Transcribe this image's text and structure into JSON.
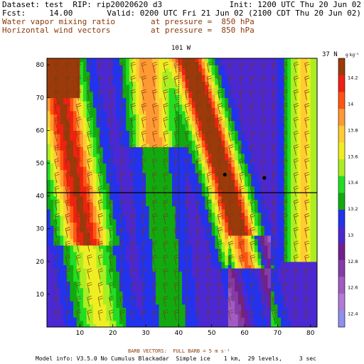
{
  "header": {
    "dataset_line": "Dataset: test  RIP: rip20020620 d3",
    "init_line": "Init: 1200 UTC Thu 20 Jun 02",
    "fcst_line": "Fcst:     14.00",
    "valid_line": "Valid: 0200 UTC Fri 21 Jun 02 (2100 CDT Thu 20 Jun 02)",
    "field1_name": "Water vapor mixing ratio",
    "field1_level": "at pressure =  850 hPa",
    "field2_name": "Horizontal wind vectors",
    "field2_level": "at pressure =  850 hPa"
  },
  "plot": {
    "lon_marker": "101 W",
    "lat_marker": "37 N"
  },
  "footer": {
    "barb_note": "BARB VECTORS:  FULL BARB = 5 m s⁻¹",
    "model_info": "Model info: V3.5.0 No Cumulus Blackadar  Simple ice    1 km,  29 levels,     3 sec"
  },
  "colors": {
    "levels_low_to_high": [
      "#8f8fee",
      "#b17ad8",
      "#a05cc0",
      "#863ca8",
      "#72208e",
      "#4b28d2",
      "#2233ee",
      "#11aa11",
      "#22dd22",
      "#aaee22",
      "#eeee22",
      "#ffcc33",
      "#ff9933",
      "#ff5511",
      "#ee2211",
      "#9b3a0a"
    ]
  },
  "chart_data": {
    "type": "heatmap",
    "title": "",
    "xlabel": "",
    "ylabel": "",
    "xlim": [
      0,
      82
    ],
    "ylim": [
      0,
      82
    ],
    "x_ticks": [
      10,
      20,
      30,
      40,
      50,
      60,
      70,
      80
    ],
    "y_ticks": [
      10,
      20,
      30,
      40,
      50,
      60,
      70,
      80
    ],
    "reference_lines": {
      "vertical_x": 40,
      "horizontal_y": 41
    },
    "colorbar": {
      "units": "g kg⁻¹",
      "ticks": [
        12.4,
        12.6,
        12.8,
        13,
        13.2,
        13.4,
        13.6,
        13.8,
        14,
        14.2
      ]
    },
    "markers": [
      {
        "x": 54,
        "y": 46.5
      },
      {
        "x": 66,
        "y": 45.5
      }
    ],
    "wind_barb_full_ms": 5
  }
}
